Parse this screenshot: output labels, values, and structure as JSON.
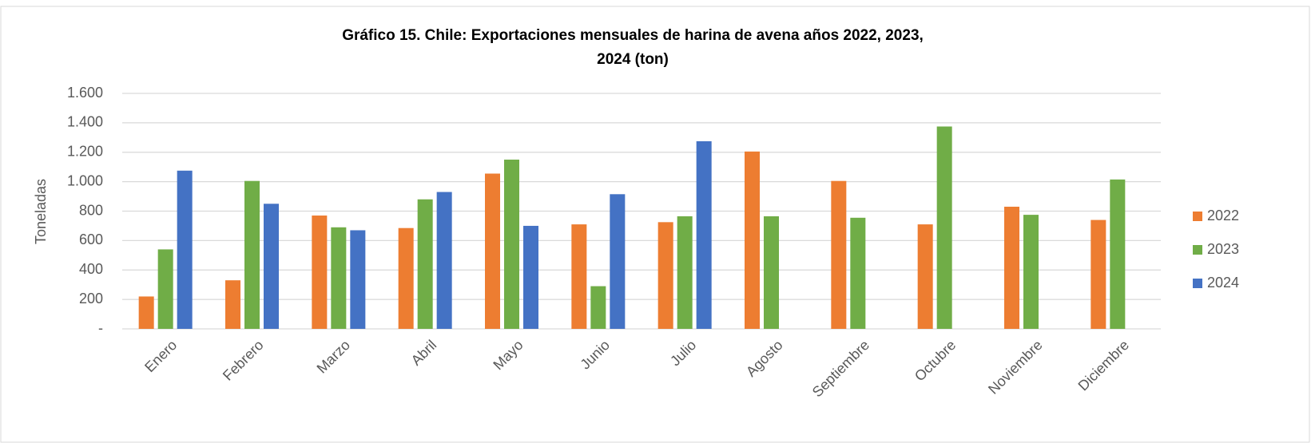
{
  "chart_data": {
    "type": "bar",
    "title": [
      "Gráfico 15. Chile: Exportaciones mensuales de harina de avena años 2022, 2023,",
      "2024 (ton)"
    ],
    "y_label": "Toneladas",
    "categories": [
      "Enero",
      "Febrero",
      "Marzo",
      "Abril",
      "Mayo",
      "Junio",
      "Julio",
      "Agosto",
      "Septiembre",
      "Octubre",
      "Noviembre",
      "Diciembre"
    ],
    "series": [
      {
        "name": "2022",
        "color": "#ed7d31",
        "values": [
          220,
          330,
          770,
          685,
          1055,
          710,
          725,
          1205,
          1005,
          710,
          830,
          740
        ]
      },
      {
        "name": "2023",
        "color": "#70ad47",
        "values": [
          540,
          1005,
          690,
          880,
          1150,
          290,
          765,
          765,
          755,
          1375,
          775,
          1015
        ]
      },
      {
        "name": "2024",
        "color": "#4472c4",
        "values": [
          1075,
          850,
          670,
          930,
          700,
          915,
          1275,
          null,
          null,
          null,
          null,
          null
        ]
      }
    ],
    "ylim": [
      0,
      1600
    ],
    "yticks": [
      {
        "value": 0,
        "label": "-"
      },
      200,
      400,
      600,
      800,
      {
        "value": 1000,
        "label": "1.000"
      },
      {
        "value": 1200,
        "label": "1.200"
      },
      {
        "value": 1400,
        "label": "1.400"
      },
      {
        "value": 1600,
        "label": "1.600"
      }
    ],
    "grid": true,
    "legend": "right"
  }
}
